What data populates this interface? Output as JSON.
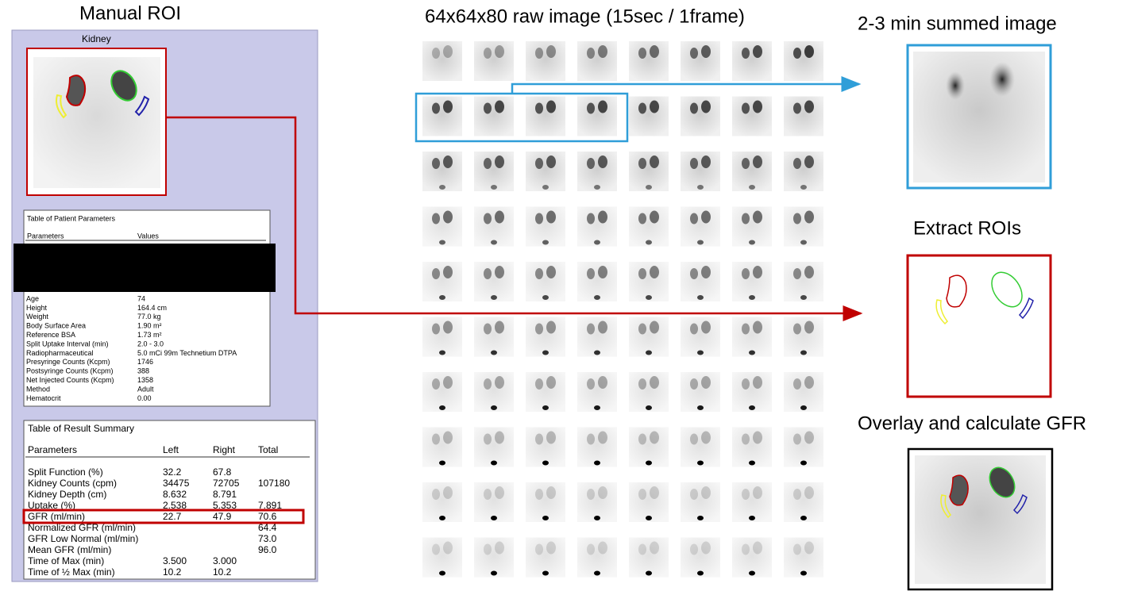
{
  "left_panel": {
    "title": "Manual ROI",
    "image_label": "Kidney",
    "patient_table": {
      "title": "Table of Patient Parameters",
      "headers": [
        "Parameters",
        "Values"
      ],
      "rows": [
        [
          "Age",
          "74"
        ],
        [
          "Height",
          "164.4 cm"
        ],
        [
          "Weight",
          "77.0 kg"
        ],
        [
          "Body Surface Area",
          "1.90 m²"
        ],
        [
          "Reference BSA",
          "1.73 m²"
        ],
        [
          "Split Uptake Interval (min)",
          "2.0 - 3.0"
        ],
        [
          "Radiopharmaceutical",
          "5.0 mCi 99m Technetium DTPA"
        ],
        [
          "Presyringe Counts (Kcpm)",
          "1746"
        ],
        [
          "Postsyringe Counts (Kcpm)",
          "388"
        ],
        [
          "Net Injected Counts (Kcpm)",
          "1358"
        ],
        [
          "Method",
          "Adult"
        ],
        [
          "Hematocrit",
          "0.00"
        ]
      ]
    },
    "result_table": {
      "title": "Table of Result Summary",
      "headers": [
        "Parameters",
        "Left",
        "Right",
        "Total"
      ],
      "rows": [
        {
          "label": "Split Function (%)",
          "left": "32.2",
          "right": "67.8"
        },
        {
          "label": "Kidney Counts (cpm)",
          "left": "34475",
          "right": "72705",
          "total": "107180"
        },
        {
          "label": "Kidney Depth (cm)",
          "left": "8.632",
          "right": "8.791"
        },
        {
          "label": "Uptake (%)",
          "left": "2.538",
          "right": "5.353",
          "total": "7.891"
        },
        {
          "label": "GFR (ml/min)",
          "left": "22.7",
          "right": "47.9",
          "total": "70.6"
        },
        {
          "label": "Normalized GFR (ml/min)",
          "total": "64.4"
        },
        {
          "label": "GFR Low Normal (ml/min)",
          "total": "73.0"
        },
        {
          "label": "Mean GFR (ml/min)",
          "total": "96.0"
        },
        {
          "label": "Time of Max (min)",
          "left": "3.500",
          "right": "3.000"
        },
        {
          "label": "Time of ½ Max (min)",
          "left": "10.2",
          "right": "10.2"
        }
      ]
    }
  },
  "raw_images": {
    "title": "64x64x80 raw image (15sec / 1frame)"
  },
  "steps": [
    {
      "label": "2-3 min summed image"
    },
    {
      "label": "Extract ROIs"
    },
    {
      "label": "Overlay and calculate GFR"
    }
  ]
}
